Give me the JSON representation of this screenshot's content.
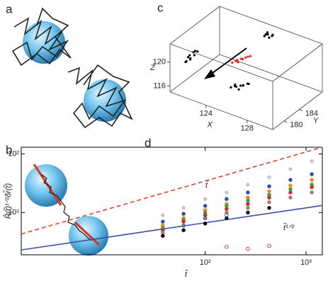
{
  "panel_labels": [
    "a",
    "b",
    "c",
    "d"
  ],
  "chart_data": [
    {
      "type": "scatter3d",
      "xlabel": "X",
      "ylabel": "Y",
      "zlabel": "Z",
      "xlim": [
        120.5,
        130.5
      ],
      "ylim": [
        177,
        190
      ],
      "zlim": [
        115,
        123
      ],
      "xticks": [
        124,
        128
      ],
      "yticks": [
        180,
        184
      ],
      "zticks": [
        116,
        120
      ],
      "series": [
        {
          "color": "#000000",
          "x": [
            120.8,
            121,
            121.2,
            120.9,
            121.1,
            121.3,
            121,
            120.7,
            121.2,
            121.4
          ],
          "y": [
            180.5,
            181,
            181.5,
            180,
            182,
            181,
            180.8,
            181.2,
            180.4,
            181.8
          ],
          "z": [
            118.6,
            119,
            119.4,
            118.8,
            119.8,
            120.2,
            119.6,
            118.9,
            119.2,
            120
          ]
        },
        {
          "color": "#000000",
          "x": [
            125.6,
            125.8,
            126,
            126.2,
            125.9,
            126.1,
            126.3,
            125.7
          ],
          "y": [
            188,
            188.2,
            187.8,
            188.4,
            188,
            187.9,
            188.3,
            188.1
          ],
          "z": [
            122.2,
            122.6,
            122.8,
            122.4,
            123,
            122.3,
            122.7,
            122.5
          ]
        },
        {
          "color": "#000000",
          "x": [
            124.2,
            124.5,
            124.8,
            125.1,
            125.4,
            125.7,
            125,
            124.6,
            125.3,
            125.9
          ],
          "y": [
            183,
            183.2,
            182.8,
            183.1,
            183,
            183.3,
            182.9,
            183,
            183.2,
            183.1
          ],
          "z": [
            115.2,
            115.5,
            115.8,
            116,
            116.3,
            116.6,
            115.4,
            115.9,
            116.1,
            116.8
          ]
        },
        {
          "color": "#e8231f",
          "x": [
            123.4,
            123.7,
            124,
            124.3,
            124.6,
            123.9,
            124.2,
            124.8,
            123.6,
            124.4
          ],
          "y": [
            185.5,
            186,
            186.2,
            185.8,
            186.4,
            185.7,
            186.1,
            186.5,
            185.9,
            186.3
          ],
          "z": [
            117.6,
            118,
            118.3,
            118.6,
            118.9,
            117.9,
            118.4,
            119.1,
            117.8,
            118.7
          ]
        }
      ]
    },
    {
      "type": "scatter",
      "xlog": true,
      "ylog": true,
      "xlabel": "t̃",
      "ylabel": "R̃(t̃)¹ᐟ²δr̃(t̃)",
      "xlim": [
        1.5,
        1450
      ],
      "ylim": [
        1.9,
        130
      ],
      "xticks": [
        {
          "value": 100,
          "label": "10²"
        },
        {
          "value": 1000,
          "label": "10³"
        }
      ],
      "yticks": [
        {
          "value": 10,
          "label": "10¹"
        },
        {
          "value": 100,
          "label": "10²"
        }
      ],
      "annotations": [
        "t̃",
        "t̃¹ᐟ²"
      ],
      "lines": [
        {
          "color": "#e0442c",
          "dash": true,
          "x": [
            1.5,
            1450
          ],
          "values": [
            4.3,
            130
          ]
        },
        {
          "color": "#3a4fa8",
          "dash": false,
          "x": [
            1.5,
            1450
          ],
          "values": [
            2.3,
            13.2
          ]
        }
      ],
      "x": [
        38,
        61,
        100,
        163,
        265,
        431,
        700,
        1140
      ],
      "series": [
        {
          "color": "#c8c8c8",
          "filled": true,
          "values": [
            9,
            12,
            17,
            22,
            30,
            40,
            55,
            75
          ]
        },
        {
          "color": "#2f4fb0",
          "filled": true,
          "values": [
            7,
            9.5,
            13,
            17,
            22,
            28,
            36,
            45
          ]
        },
        {
          "color": "#f08a1c",
          "filled": true,
          "values": [
            6,
            8,
            11,
            14,
            18,
            23,
            29,
            36
          ]
        },
        {
          "color": "#3aa345",
          "filled": true,
          "values": [
            5.5,
            7.5,
            10,
            13,
            16,
            20,
            25,
            30
          ]
        },
        {
          "color": "#d8262a",
          "filled": true,
          "values": [
            5,
            7,
            9,
            11.5,
            14,
            18,
            22,
            27
          ]
        },
        {
          "color": "#a08070",
          "filled": true,
          "values": [
            4.5,
            6,
            8,
            10,
            12,
            15,
            18,
            22
          ]
        },
        {
          "color": "#111111",
          "filled": true,
          "values": [
            4,
            5,
            6.5,
            8,
            10,
            12,
            null,
            null
          ]
        },
        {
          "color": "#e8231f",
          "filled": false,
          "values": [
            null,
            null,
            null,
            2.6,
            2.4,
            2.7,
            null,
            null
          ]
        },
        {
          "color": "#2f4fb0",
          "filled": false,
          "values": [
            null,
            6,
            8,
            9,
            null,
            null,
            null,
            null
          ]
        }
      ]
    }
  ]
}
